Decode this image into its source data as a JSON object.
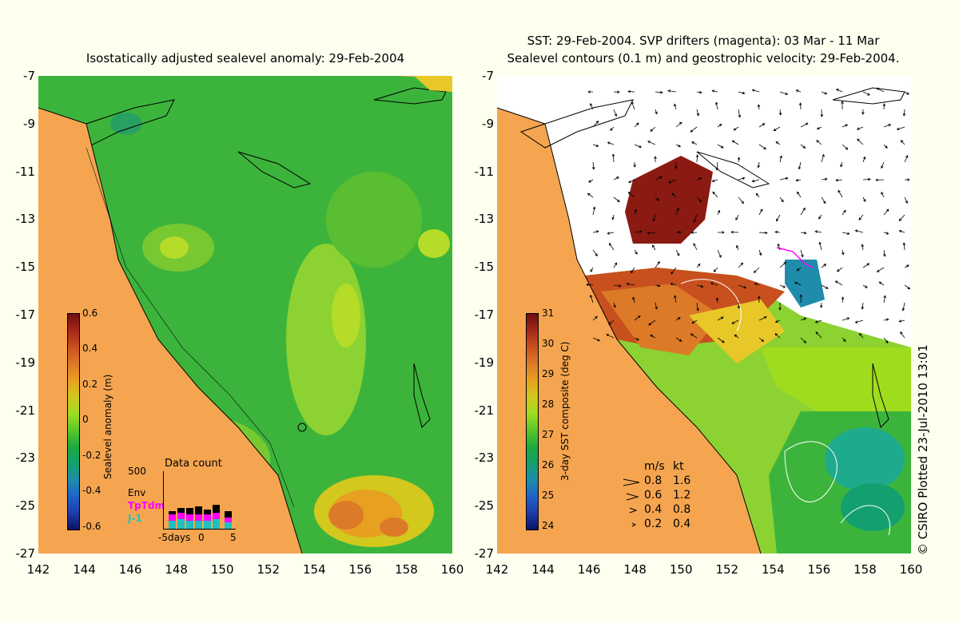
{
  "left_panel": {
    "title": "Isostatically adjusted sealevel anomaly: 29-Feb-2004",
    "colorbar": {
      "title": "Sealevel anomaly (m)",
      "ticks": [
        "0.6",
        "0.4",
        "0.2",
        "0",
        "-0.2",
        "-0.4",
        "-0.6"
      ],
      "colors": [
        "#6b0f0f",
        "#a5281a",
        "#c8501e",
        "#dc7a28",
        "#e8a020",
        "#d2c81e",
        "#a0dc1e",
        "#5ac828",
        "#1eaa3c",
        "#14a06e",
        "#1e8caa",
        "#1e64c8",
        "#1e3caa",
        "#0a1464"
      ]
    },
    "data_count": {
      "title": "Data count",
      "ymax_label": "500",
      "series_labels": [
        "Env",
        "TpTdm",
        "J-1"
      ],
      "series_colors": [
        "#000000",
        "#ff00ff",
        "#20c0c0"
      ],
      "x_labels": [
        "-5days",
        "0",
        "5"
      ]
    }
  },
  "right_panel": {
    "title_line1": "SST: 29-Feb-2004. SVP drifters (magenta): 03 Mar - 11 Mar",
    "title_line2": "Sealevel contours (0.1 m) and geostrophic velocity: 29-Feb-2004.",
    "colorbar": {
      "title": "3-day SST composite (deg C)",
      "ticks": [
        "31",
        "30",
        "29",
        "28",
        "27",
        "26",
        "25",
        "24"
      ],
      "colors": [
        "#6b0f0f",
        "#a5281a",
        "#c8501e",
        "#dc7a28",
        "#e8a020",
        "#d2c81e",
        "#a0dc1e",
        "#5ac828",
        "#1eaa3c",
        "#14a06e",
        "#1e8caa",
        "#1e64c8",
        "#1e3caa",
        "#0a1464"
      ]
    },
    "velocity_legend": {
      "header_ms": "m/s",
      "header_kt": "kt",
      "rows": [
        {
          "ms": "0.8",
          "kt": "1.6"
        },
        {
          "ms": "0.6",
          "kt": "1.2"
        },
        {
          "ms": "0.4",
          "kt": "0.8"
        },
        {
          "ms": "0.2",
          "kt": "0.4"
        }
      ]
    },
    "credit": "© CSIRO Plotted 23-Jul-2010 13:01"
  },
  "axes": {
    "lat_labels": [
      "-7",
      "-9",
      "-11",
      "-13",
      "-15",
      "-17",
      "-19",
      "-21",
      "-23",
      "-25",
      "-27"
    ],
    "lon_labels": [
      "142",
      "144",
      "146",
      "148",
      "150",
      "152",
      "154",
      "156",
      "158",
      "160"
    ]
  },
  "colors": {
    "land": "#f5a550",
    "background": "#fffff0",
    "sea_green": "#3cb43c"
  }
}
